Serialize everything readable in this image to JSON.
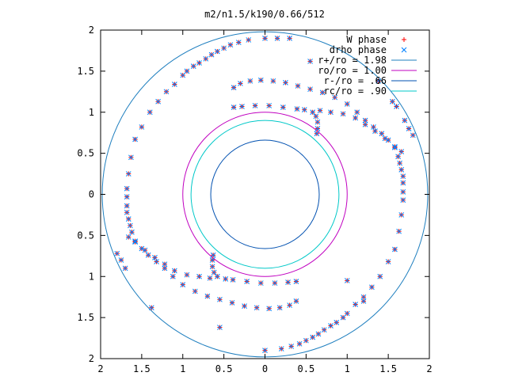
{
  "chart_data": {
    "type": "scatter",
    "title": "m2/n1.5/k190/0.66/512",
    "xlabel": "",
    "ylabel": "",
    "xlim": [
      -2,
      2
    ],
    "ylim": [
      -2,
      2
    ],
    "x_ticks": [
      -2,
      -1.5,
      -1,
      -0.5,
      0,
      0.5,
      1,
      1.5,
      2
    ],
    "y_ticks": [
      -2,
      -1.5,
      -1,
      -0.5,
      0,
      0.5,
      1,
      1.5,
      2
    ],
    "x_tick_labels": [
      "2",
      "1.5",
      "1",
      "0.5",
      "0",
      "0.5",
      "1",
      "1.5",
      "2"
    ],
    "y_tick_labels": [
      "2",
      "1.5",
      "1",
      "0.5",
      "0",
      "0.5",
      "1",
      "1.5",
      "2"
    ],
    "grid": false,
    "legend_position": "top-right",
    "legend": [
      {
        "label": "W phase",
        "marker": "plus",
        "color": "#ff0000"
      },
      {
        "label": "drho phase",
        "marker": "cross",
        "color": "#0080ff"
      },
      {
        "label": "r+/ro = 1.98",
        "marker": "line",
        "color": "#1f7fbf"
      },
      {
        "label": "ro/ro = 1.00",
        "marker": "line",
        "color": "#c000c0"
      },
      {
        "label": "r-/ro = .66",
        "marker": "line",
        "color": "#0050b0"
      },
      {
        "label": "rc/ro = .90",
        "marker": "line",
        "color": "#00c8c8"
      }
    ],
    "circles": [
      {
        "name": "r+/ro",
        "r": 1.98,
        "color": "#1f7fbf"
      },
      {
        "name": "ro/ro",
        "r": 1.0,
        "color": "#c000c0"
      },
      {
        "name": "r-/ro",
        "r": 0.66,
        "color": "#0050b0"
      },
      {
        "name": "rc/ro",
        "r": 0.9,
        "color": "#00c8c8"
      }
    ],
    "series": [
      {
        "name": "W phase",
        "color": "#ff0000",
        "marker": "plus",
        "points": [
          [
            0.39,
            1.04
          ],
          [
            0.22,
            1.06
          ],
          [
            0.05,
            1.08
          ],
          [
            -0.12,
            1.08
          ],
          [
            -0.28,
            1.07
          ],
          [
            -0.38,
            1.06
          ],
          [
            0.48,
            1.03
          ],
          [
            0.58,
            1.0
          ],
          [
            0.62,
            0.95
          ],
          [
            0.64,
            0.88
          ],
          [
            0.64,
            0.8
          ],
          [
            0.63,
            0.74
          ],
          [
            0.67,
            1.02
          ],
          [
            0.8,
            1.0
          ],
          [
            0.95,
            0.98
          ],
          [
            1.1,
            0.93
          ],
          [
            1.22,
            0.85
          ],
          [
            1.34,
            0.77
          ],
          [
            1.46,
            0.68
          ],
          [
            1.58,
            0.57
          ],
          [
            1.62,
            0.46
          ],
          [
            1.64,
            0.38
          ],
          [
            1.66,
            0.3
          ],
          [
            1.68,
            0.22
          ],
          [
            1.68,
            0.14
          ],
          [
            1.68,
            0.03
          ],
          [
            1.68,
            -0.07
          ],
          [
            1.66,
            -0.25
          ],
          [
            1.63,
            -0.45
          ],
          [
            1.58,
            -0.67
          ],
          [
            1.5,
            -0.82
          ],
          [
            1.4,
            -1.0
          ],
          [
            1.3,
            -1.13
          ],
          [
            1.2,
            -1.25
          ],
          [
            1.1,
            -1.34
          ],
          [
            1.0,
            -1.45
          ],
          [
            0.95,
            -1.5
          ],
          [
            0.87,
            -1.56
          ],
          [
            0.8,
            -1.6
          ],
          [
            0.72,
            -1.65
          ],
          [
            0.65,
            -1.7
          ],
          [
            0.58,
            -1.74
          ],
          [
            0.5,
            -1.78
          ],
          [
            0.42,
            -1.82
          ],
          [
            0.32,
            -1.85
          ],
          [
            0.2,
            -1.88
          ],
          [
            0.0,
            -1.9
          ],
          [
            -0.39,
            -1.04
          ],
          [
            -0.22,
            -1.06
          ],
          [
            -0.05,
            -1.08
          ],
          [
            0.12,
            -1.08
          ],
          [
            0.28,
            -1.07
          ],
          [
            0.38,
            -1.06
          ],
          [
            -0.48,
            -1.03
          ],
          [
            -0.58,
            -1.0
          ],
          [
            -0.62,
            -0.95
          ],
          [
            -0.64,
            -0.88
          ],
          [
            -0.64,
            -0.8
          ],
          [
            -0.63,
            -0.74
          ],
          [
            -0.67,
            -1.02
          ],
          [
            -0.8,
            -1.0
          ],
          [
            -0.95,
            -0.98
          ],
          [
            -1.1,
            -0.93
          ],
          [
            -1.22,
            -0.85
          ],
          [
            -1.34,
            -0.77
          ],
          [
            -1.46,
            -0.68
          ],
          [
            -1.58,
            -0.57
          ],
          [
            -1.62,
            -0.46
          ],
          [
            -1.64,
            -0.38
          ],
          [
            -1.66,
            -0.3
          ],
          [
            -1.68,
            -0.22
          ],
          [
            -1.68,
            -0.14
          ],
          [
            -1.68,
            -0.03
          ],
          [
            -1.68,
            0.07
          ],
          [
            -1.66,
            0.25
          ],
          [
            -1.63,
            0.45
          ],
          [
            -1.58,
            0.67
          ],
          [
            -1.5,
            0.82
          ],
          [
            -1.4,
            1.0
          ],
          [
            -1.3,
            1.13
          ],
          [
            -1.2,
            1.25
          ],
          [
            -1.1,
            1.34
          ],
          [
            -1.0,
            1.45
          ],
          [
            -0.95,
            1.5
          ],
          [
            -0.87,
            1.56
          ],
          [
            -0.8,
            1.6
          ],
          [
            -0.72,
            1.65
          ],
          [
            -0.65,
            1.7
          ],
          [
            -0.58,
            1.74
          ],
          [
            -0.5,
            1.78
          ],
          [
            -0.42,
            1.82
          ],
          [
            -0.32,
            1.85
          ],
          [
            -0.2,
            1.88
          ],
          [
            0.0,
            1.9
          ],
          [
            -0.38,
            1.3
          ],
          [
            -0.3,
            1.35
          ],
          [
            -0.18,
            1.38
          ],
          [
            -0.05,
            1.39
          ],
          [
            0.1,
            1.38
          ],
          [
            0.25,
            1.36
          ],
          [
            0.4,
            1.32
          ],
          [
            0.55,
            1.28
          ],
          [
            0.7,
            1.24
          ],
          [
            0.85,
            1.18
          ],
          [
            1.0,
            1.1
          ],
          [
            1.12,
            1.0
          ],
          [
            1.22,
            0.9
          ],
          [
            1.32,
            0.82
          ],
          [
            1.42,
            0.74
          ],
          [
            1.5,
            0.66
          ],
          [
            1.58,
            0.58
          ],
          [
            1.66,
            0.52
          ],
          [
            0.38,
            -1.3
          ],
          [
            0.3,
            -1.35
          ],
          [
            0.18,
            -1.38
          ],
          [
            0.05,
            -1.39
          ],
          [
            -0.1,
            -1.38
          ],
          [
            -0.25,
            -1.36
          ],
          [
            -0.4,
            -1.32
          ],
          [
            -0.55,
            -1.28
          ],
          [
            -0.7,
            -1.24
          ],
          [
            -0.85,
            -1.18
          ],
          [
            -1.0,
            -1.1
          ],
          [
            -1.12,
            -1.0
          ],
          [
            -1.22,
            -0.9
          ],
          [
            -1.32,
            -0.82
          ],
          [
            -1.42,
            -0.74
          ],
          [
            -1.5,
            -0.66
          ],
          [
            -1.58,
            -0.58
          ],
          [
            -1.66,
            -0.52
          ],
          [
            1.7,
            0.9
          ],
          [
            1.75,
            0.8
          ],
          [
            1.8,
            0.72
          ],
          [
            1.6,
            1.07
          ],
          [
            1.55,
            1.13
          ],
          [
            -1.7,
            -0.9
          ],
          [
            -1.75,
            -0.8
          ],
          [
            -1.8,
            -0.72
          ],
          [
            -1.38,
            -1.38
          ],
          [
            -0.55,
            -1.62
          ],
          [
            1.38,
            1.38
          ],
          [
            0.3,
            1.9
          ],
          [
            0.15,
            1.9
          ],
          [
            0.55,
            1.62
          ],
          [
            1.0,
            -1.05
          ],
          [
            1.2,
            -1.3
          ]
        ]
      },
      {
        "name": "drho phase",
        "color": "#0080ff",
        "marker": "cross",
        "points": [
          [
            0.39,
            1.04
          ],
          [
            0.22,
            1.06
          ],
          [
            0.05,
            1.08
          ],
          [
            -0.12,
            1.08
          ],
          [
            -0.28,
            1.07
          ],
          [
            -0.38,
            1.06
          ],
          [
            0.48,
            1.03
          ],
          [
            0.58,
            1.0
          ],
          [
            0.62,
            0.95
          ],
          [
            0.64,
            0.88
          ],
          [
            0.64,
            0.8
          ],
          [
            0.63,
            0.74
          ],
          [
            0.67,
            1.02
          ],
          [
            0.8,
            1.0
          ],
          [
            0.95,
            0.98
          ],
          [
            1.1,
            0.93
          ],
          [
            1.22,
            0.85
          ],
          [
            1.34,
            0.77
          ],
          [
            1.46,
            0.68
          ],
          [
            1.58,
            0.57
          ],
          [
            1.62,
            0.46
          ],
          [
            1.64,
            0.38
          ],
          [
            1.66,
            0.3
          ],
          [
            1.68,
            0.22
          ],
          [
            1.68,
            0.14
          ],
          [
            1.68,
            0.03
          ],
          [
            1.68,
            -0.07
          ],
          [
            1.66,
            -0.25
          ],
          [
            1.63,
            -0.45
          ],
          [
            1.58,
            -0.67
          ],
          [
            1.5,
            -0.82
          ],
          [
            1.4,
            -1.0
          ],
          [
            1.3,
            -1.13
          ],
          [
            1.2,
            -1.25
          ],
          [
            1.1,
            -1.34
          ],
          [
            1.0,
            -1.45
          ],
          [
            0.95,
            -1.5
          ],
          [
            0.87,
            -1.56
          ],
          [
            0.8,
            -1.6
          ],
          [
            0.72,
            -1.65
          ],
          [
            0.65,
            -1.7
          ],
          [
            0.58,
            -1.74
          ],
          [
            0.5,
            -1.78
          ],
          [
            0.42,
            -1.82
          ],
          [
            0.32,
            -1.85
          ],
          [
            0.2,
            -1.88
          ],
          [
            0.0,
            -1.9
          ],
          [
            -0.39,
            -1.04
          ],
          [
            -0.22,
            -1.06
          ],
          [
            -0.05,
            -1.08
          ],
          [
            0.12,
            -1.08
          ],
          [
            0.28,
            -1.07
          ],
          [
            0.38,
            -1.06
          ],
          [
            -0.48,
            -1.03
          ],
          [
            -0.58,
            -1.0
          ],
          [
            -0.62,
            -0.95
          ],
          [
            -0.64,
            -0.88
          ],
          [
            -0.64,
            -0.8
          ],
          [
            -0.63,
            -0.74
          ],
          [
            -0.67,
            -1.02
          ],
          [
            -0.8,
            -1.0
          ],
          [
            -0.95,
            -0.98
          ],
          [
            -1.1,
            -0.93
          ],
          [
            -1.22,
            -0.85
          ],
          [
            -1.34,
            -0.77
          ],
          [
            -1.46,
            -0.68
          ],
          [
            -1.58,
            -0.57
          ],
          [
            -1.62,
            -0.46
          ],
          [
            -1.64,
            -0.38
          ],
          [
            -1.66,
            -0.3
          ],
          [
            -1.68,
            -0.22
          ],
          [
            -1.68,
            -0.14
          ],
          [
            -1.68,
            -0.03
          ],
          [
            -1.68,
            0.07
          ],
          [
            -1.66,
            0.25
          ],
          [
            -1.63,
            0.45
          ],
          [
            -1.58,
            0.67
          ],
          [
            -1.5,
            0.82
          ],
          [
            -1.4,
            1.0
          ],
          [
            -1.3,
            1.13
          ],
          [
            -1.2,
            1.25
          ],
          [
            -1.1,
            1.34
          ],
          [
            -1.0,
            1.45
          ],
          [
            -0.95,
            1.5
          ],
          [
            -0.87,
            1.56
          ],
          [
            -0.8,
            1.6
          ],
          [
            -0.72,
            1.65
          ],
          [
            -0.65,
            1.7
          ],
          [
            -0.58,
            1.74
          ],
          [
            -0.5,
            1.78
          ],
          [
            -0.42,
            1.82
          ],
          [
            -0.32,
            1.85
          ],
          [
            -0.2,
            1.88
          ],
          [
            0.0,
            1.9
          ],
          [
            -0.38,
            1.3
          ],
          [
            -0.3,
            1.35
          ],
          [
            -0.18,
            1.38
          ],
          [
            -0.05,
            1.39
          ],
          [
            0.1,
            1.38
          ],
          [
            0.25,
            1.36
          ],
          [
            0.4,
            1.32
          ],
          [
            0.55,
            1.28
          ],
          [
            0.7,
            1.24
          ],
          [
            0.85,
            1.18
          ],
          [
            1.0,
            1.1
          ],
          [
            1.12,
            1.0
          ],
          [
            1.22,
            0.9
          ],
          [
            1.32,
            0.82
          ],
          [
            1.42,
            0.74
          ],
          [
            1.5,
            0.66
          ],
          [
            1.58,
            0.58
          ],
          [
            1.66,
            0.52
          ],
          [
            0.38,
            -1.3
          ],
          [
            0.3,
            -1.35
          ],
          [
            0.18,
            -1.38
          ],
          [
            0.05,
            -1.39
          ],
          [
            -0.1,
            -1.38
          ],
          [
            -0.25,
            -1.36
          ],
          [
            -0.4,
            -1.32
          ],
          [
            -0.55,
            -1.28
          ],
          [
            -0.7,
            -1.24
          ],
          [
            -0.85,
            -1.18
          ],
          [
            -1.0,
            -1.1
          ],
          [
            -1.12,
            -1.0
          ],
          [
            -1.22,
            -0.9
          ],
          [
            -1.32,
            -0.82
          ],
          [
            -1.42,
            -0.74
          ],
          [
            -1.5,
            -0.66
          ],
          [
            -1.58,
            -0.58
          ],
          [
            -1.66,
            -0.52
          ],
          [
            1.7,
            0.9
          ],
          [
            1.75,
            0.8
          ],
          [
            1.8,
            0.72
          ],
          [
            1.6,
            1.07
          ],
          [
            1.55,
            1.13
          ],
          [
            -1.7,
            -0.9
          ],
          [
            -1.75,
            -0.8
          ],
          [
            -1.8,
            -0.72
          ],
          [
            -1.38,
            -1.38
          ],
          [
            -0.55,
            -1.62
          ],
          [
            1.38,
            1.38
          ],
          [
            0.3,
            1.9
          ],
          [
            0.15,
            1.9
          ],
          [
            0.55,
            1.62
          ],
          [
            1.0,
            -1.05
          ],
          [
            1.2,
            -1.3
          ]
        ]
      }
    ]
  }
}
